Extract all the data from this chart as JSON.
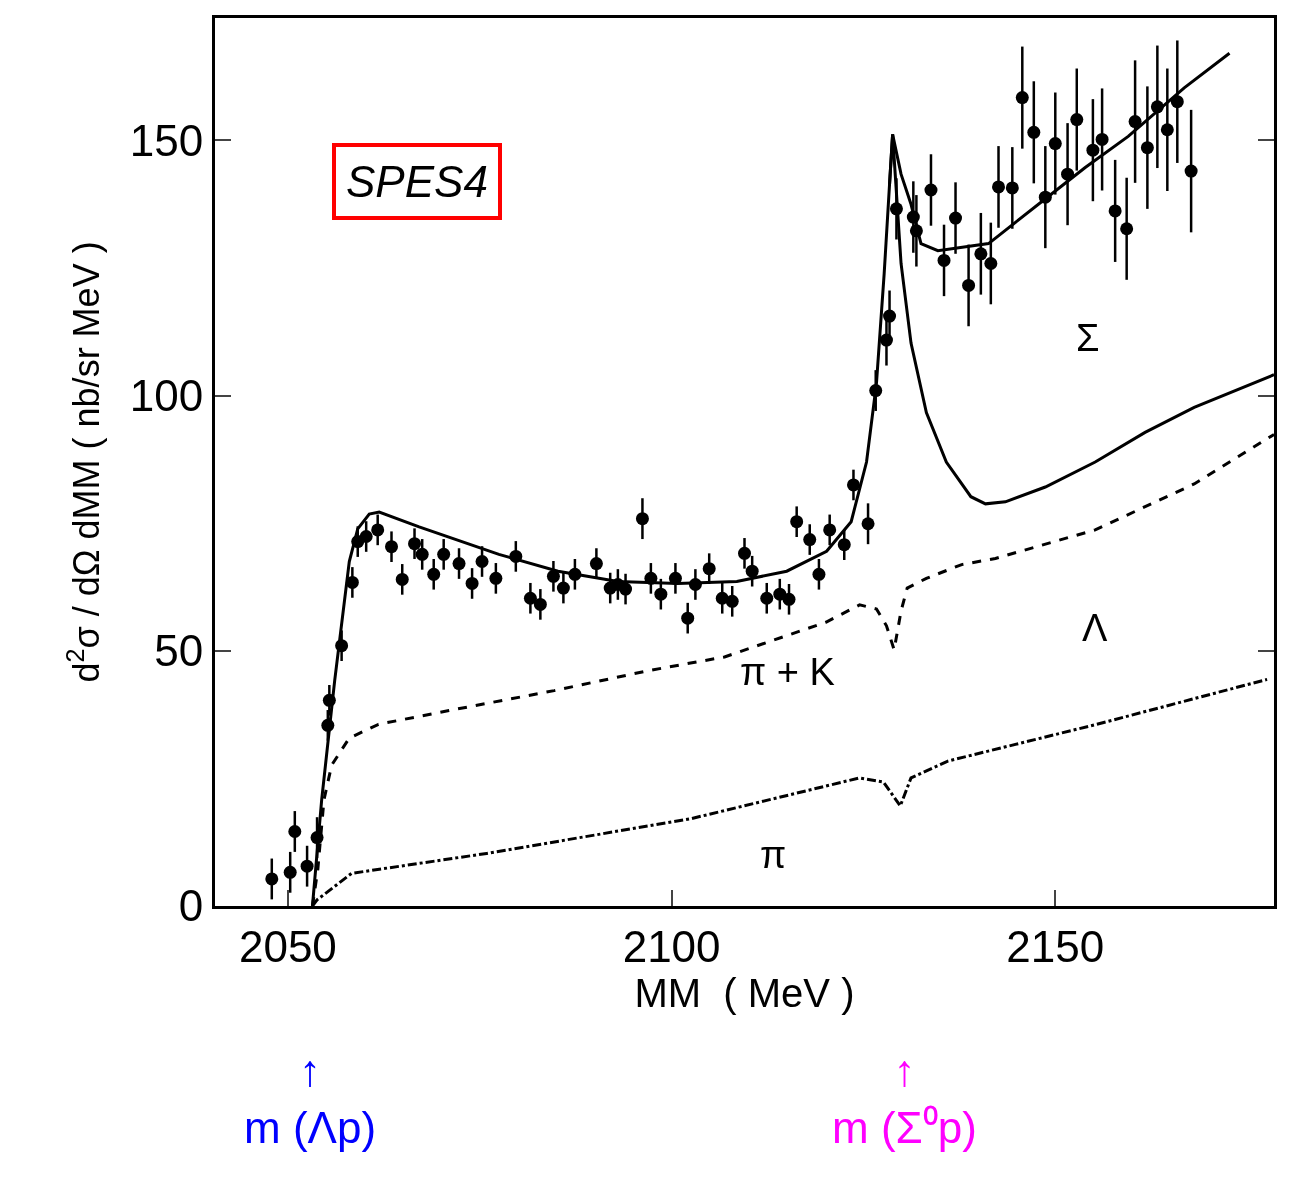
{
  "chart_data": {
    "type": "scatter",
    "xlabel": "MM  ( MeV )",
    "ylabel": "d$^{2}$σ / dΩ dMM ( nb/sr MeV )",
    "xlim": [
      2040.5,
      2178.5
    ],
    "xticks": [
      2050,
      2100,
      2150
    ],
    "ylim": [
      0,
      174
    ],
    "yticks": [
      0,
      50,
      100,
      150
    ],
    "series": [
      {
        "color": "#000000",
        "marker": "circle",
        "x": [
          2047.9,
          2050.3,
          2050.9,
          2052.5,
          2053.8,
          2055.2,
          2055.4,
          2057.0,
          2058.4,
          2059.1,
          2060.2,
          2061.7,
          2063.5,
          2064.9,
          2066.5,
          2067.5,
          2069.0,
          2070.3,
          2072.3,
          2074.0,
          2075.3,
          2077.1,
          2079.7,
          2081.6,
          2082.9,
          2084.6,
          2085.9,
          2087.4,
          2090.2,
          2092.0,
          2093.0,
          2094.0,
          2096.2,
          2097.3,
          2098.6,
          2100.5,
          2102.1,
          2103.1,
          2104.9,
          2106.6,
          2107.9,
          2109.5,
          2110.5,
          2112.4,
          2114.1,
          2115.3,
          2116.3,
          2118.0,
          2119.2,
          2120.6,
          2122.5,
          2123.7,
          2125.6,
          2126.6,
          2128.0,
          2128.4,
          2129.3,
          2131.5,
          2131.9,
          2133.8,
          2135.5,
          2137.0,
          2138.7,
          2140.3,
          2141.6,
          2142.6,
          2144.4,
          2145.7,
          2147.2,
          2148.7,
          2150.0,
          2151.6,
          2152.8,
          2154.9,
          2156.1,
          2157.8,
          2159.3,
          2160.4,
          2162.0,
          2163.3,
          2164.6,
          2165.9,
          2167.7
        ],
        "values": [
          5.3,
          6.6,
          14.6,
          7.8,
          13.4,
          35.4,
          40.3,
          51.0,
          63.4,
          71.4,
          72.4,
          73.7,
          70.4,
          64.0,
          71.0,
          68.9,
          65.0,
          68.9,
          67.1,
          63.2,
          67.5,
          64.2,
          68.5,
          60.3,
          59.1,
          64.6,
          62.3,
          65.0,
          67.1,
          62.3,
          63.0,
          62.1,
          75.9,
          64.2,
          61.1,
          64.2,
          56.4,
          63.0,
          66.1,
          60.3,
          59.7,
          69.1,
          65.6,
          60.3,
          61.1,
          60.1,
          75.3,
          71.8,
          65.0,
          73.7,
          70.8,
          82.5,
          74.9,
          101.0,
          110.9,
          115.6,
          136.6,
          135.0,
          132.3,
          140.3,
          126.5,
          134.8,
          121.6,
          127.8,
          125.9,
          140.9,
          140.7,
          158.4,
          151.6,
          138.9,
          149.4,
          143.4,
          154.1,
          148.1,
          150.2,
          136.2,
          132.7,
          153.7,
          148.6,
          156.6,
          152.1,
          157.6,
          144.0
        ],
        "errors": [
          4,
          4,
          4,
          4,
          4,
          3,
          3,
          3,
          3,
          3,
          3,
          3,
          3,
          3,
          3,
          3,
          3,
          3,
          3,
          3,
          3,
          3,
          3,
          3,
          3,
          3,
          3,
          3,
          3,
          3,
          3,
          3,
          4,
          3,
          3,
          3,
          3,
          3,
          3,
          3,
          3,
          3,
          3,
          3,
          3,
          3,
          3,
          3,
          3,
          3,
          3,
          3,
          4,
          4,
          5,
          5,
          6,
          7,
          7,
          7,
          7,
          7,
          8,
          8,
          8,
          8,
          8,
          10,
          10,
          10,
          10,
          10,
          10,
          10,
          10,
          10,
          10,
          12,
          12,
          12,
          12,
          12,
          12
        ]
      },
      {
        "type": "line",
        "color": "#000000",
        "line_style": "solid",
        "marker": "none",
        "x": [
          2053.2,
          2054.4,
          2056.1,
          2058.0,
          2059.1,
          2060.6,
          2061.9,
          2067.1,
          2077.5,
          2085.2,
          2093.0,
          2100.8,
          2108.5,
          2115.0,
          2120.2,
          2123.4,
          2125.4,
          2126.7,
          2127.7,
          2128.4,
          2128.8,
          2129.9,
          2131.2,
          2132.5,
          2134.7,
          2141.3,
          2148.3,
          2153.9,
          2159.5,
          2166.8,
          2172.7
        ],
        "values": [
          0,
          20.8,
          44.2,
          67.5,
          73.9,
          76.8,
          77.2,
          74.3,
          68.9,
          65.6,
          63.6,
          63.2,
          63.6,
          65.6,
          69.5,
          75.3,
          87.0,
          102.5,
          123.9,
          141.4,
          151.2,
          143.4,
          137.5,
          129.8,
          128.4,
          129.8,
          138.1,
          144.7,
          150.8,
          160.3,
          167.1
        ]
      },
      {
        "type": "line",
        "color": "#000000",
        "line_style": "solid",
        "marker": "none",
        "x": [
          2128.4,
          2128.8,
          2129.9,
          2131.2,
          2133.2,
          2135.8,
          2139.0,
          2140.9,
          2143.5,
          2148.7,
          2155.2,
          2161.7,
          2168.1,
          2178.5
        ],
        "values": [
          141.4,
          151.2,
          125.9,
          110.3,
          96.7,
          87.0,
          80.2,
          78.8,
          79.2,
          82.1,
          87.0,
          92.8,
          97.7,
          104.1
        ]
      },
      {
        "type": "line",
        "color": "#000000",
        "line_style": "dashed",
        "marker": "none",
        "x": [
          2053.2,
          2053.9,
          2054.7,
          2055.7,
          2058.0,
          2061.8,
          2071.0,
          2084.7,
          2096.9,
          2106.9,
          2120.1,
          2124.5,
          2126.7,
          2128.0,
          2129.0,
          2129.9,
          2130.7,
          2133.2,
          2137.8,
          2142.2,
          2155.2,
          2168.1,
          2178.5
        ],
        "values": [
          0,
          7.2,
          20.8,
          27.6,
          32.9,
          35.6,
          38.3,
          42.2,
          46.1,
          48.8,
          55.6,
          59.0,
          58.2,
          54.9,
          50.2,
          57.8,
          62.3,
          64.2,
          66.9,
          68.1,
          73.7,
          82.7,
          92.4
        ]
      },
      {
        "type": "line",
        "color": "#000000",
        "line_style": "dashdot",
        "marker": "none",
        "x": [
          2053.2,
          2053.8,
          2058.3,
          2075.9,
          2102.5,
          2124.5,
          2127.6,
          2129.8,
          2131.2,
          2136.0,
          2155.4,
          2177.6
        ],
        "values": [
          0,
          1.2,
          6.4,
          10.3,
          17.1,
          25.1,
          24.3,
          19.6,
          25.1,
          28.4,
          35.6,
          44.4
        ]
      }
    ],
    "annotations": [
      "SPES4",
      "Σ",
      "Λ",
      "π + K",
      "π",
      "↑\nm (Λp)",
      "↑\nm (Σ⁰p)"
    ]
  }
}
